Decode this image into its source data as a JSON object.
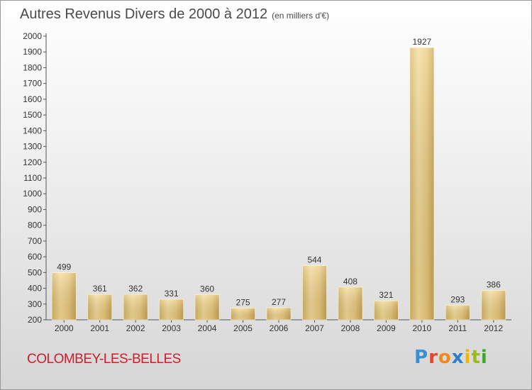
{
  "header": {
    "title": "Autres Revenus Divers de 2000 à 2012",
    "subtitle": "(en milliers d'€)"
  },
  "footer": {
    "commune": "COLOMBEY-LES-BELLES",
    "logo_letters": [
      "P",
      "r",
      "o",
      "x",
      "i",
      "t",
      "i"
    ],
    "logo_colors": [
      "#3a8fd0",
      "#e2462c",
      "#f08a1c",
      "#2c7fc8",
      "#f4b400",
      "#9bbb1a",
      "#3fa535"
    ]
  },
  "chart_data": {
    "type": "bar",
    "categories": [
      "2000",
      "2001",
      "2002",
      "2003",
      "2004",
      "2005",
      "2006",
      "2007",
      "2008",
      "2009",
      "2010",
      "2011",
      "2012"
    ],
    "values": [
      499,
      361,
      362,
      331,
      360,
      275,
      277,
      544,
      408,
      321,
      1927,
      293,
      386
    ],
    "ylim": [
      200,
      2000
    ],
    "yticks": [
      200,
      300,
      400,
      500,
      600,
      700,
      800,
      900,
      1000,
      1100,
      1200,
      1300,
      1400,
      1500,
      1600,
      1700,
      1800,
      1900,
      2000
    ],
    "grid": false,
    "bar_color": "#e8c878"
  }
}
